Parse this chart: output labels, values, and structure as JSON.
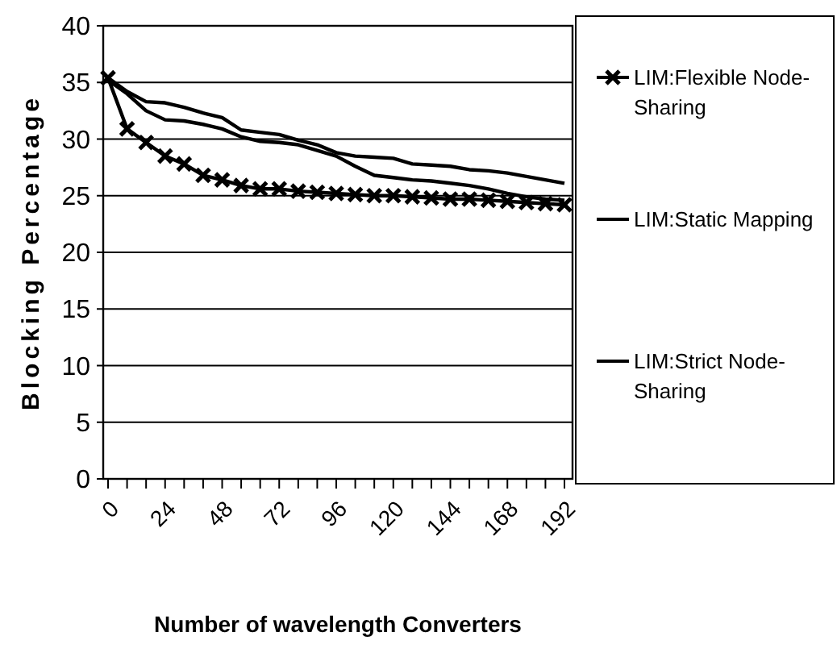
{
  "chart_data": {
    "type": "line",
    "xlabel": "Number of wavelength Converters",
    "ylabel": "Blocking Percentage",
    "categories": [
      "0",
      null,
      null,
      "24",
      null,
      null,
      "48",
      null,
      null,
      "72",
      null,
      null,
      "96",
      null,
      null,
      "120",
      null,
      null,
      "144",
      null,
      null,
      "168",
      null,
      null,
      "192"
    ],
    "series": [
      {
        "name": "LIM:Flexible Node-Sharing",
        "color": "#000000",
        "marker": "cross",
        "values": [
          35.4,
          30.9,
          29.7,
          28.5,
          27.8,
          26.8,
          26.4,
          25.9,
          25.6,
          25.6,
          25.4,
          25.3,
          25.2,
          25.1,
          25.0,
          25.0,
          24.9,
          24.8,
          24.7,
          24.7,
          24.6,
          24.5,
          24.4,
          24.3,
          24.2
        ]
      },
      {
        "name": "LIM:Static Mapping",
        "color": "#000000",
        "marker": "none",
        "values": [
          35.4,
          34.2,
          33.3,
          33.2,
          32.8,
          32.3,
          31.9,
          30.8,
          30.6,
          30.4,
          29.9,
          29.5,
          28.8,
          28.5,
          28.4,
          28.3,
          27.8,
          27.7,
          27.6,
          27.3,
          27.2,
          27.0,
          26.7,
          26.4,
          26.1
        ]
      },
      {
        "name": "LIM:Strict Node-Sharing",
        "color": "#000000",
        "marker": "none",
        "values": [
          35.2,
          34.0,
          32.5,
          31.7,
          31.6,
          31.3,
          30.9,
          30.2,
          29.8,
          29.7,
          29.5,
          29.0,
          28.5,
          27.6,
          26.8,
          26.6,
          26.4,
          26.3,
          26.1,
          25.9,
          25.6,
          25.2,
          24.9,
          24.7,
          24.6
        ]
      }
    ],
    "ylim": [
      0,
      40
    ],
    "yticks": [
      0,
      5,
      10,
      15,
      20,
      25,
      30,
      35,
      40
    ],
    "grid": "y",
    "legend": "right",
    "line_style": "solid"
  }
}
